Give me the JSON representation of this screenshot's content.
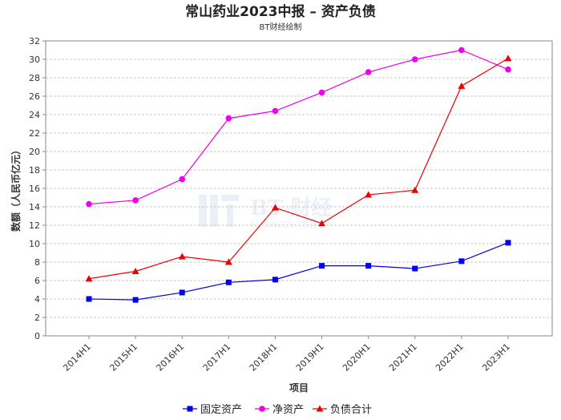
{
  "chart_data": {
    "type": "line",
    "title": "常山药业2023中报 – 资产负债",
    "subtitle": "BT财经绘制",
    "xlabel": "项目",
    "ylabel": "数额（人民币亿元）",
    "ylim": [
      0,
      32
    ],
    "yticks": [
      "0",
      "2",
      "4",
      "6",
      "8",
      "10",
      "12",
      "14",
      "16",
      "18",
      "20",
      "22",
      "24",
      "26",
      "28",
      "30",
      "32"
    ],
    "categories": [
      "2014H1",
      "2015H1",
      "2016H1",
      "2017H1",
      "2018H1",
      "2019H1",
      "2020H1",
      "2021H1",
      "2022H1",
      "2023H1"
    ],
    "grid": true,
    "legend_position": "bottom",
    "series": [
      {
        "name": "固定资产",
        "color": "#0000ee",
        "marker": "square",
        "values": [
          4.0,
          3.9,
          4.7,
          5.8,
          6.1,
          7.6,
          7.6,
          7.3,
          8.1,
          10.1
        ]
      },
      {
        "name": "净资产",
        "color": "#ee00ee",
        "marker": "circle",
        "values": [
          14.3,
          14.7,
          17.0,
          23.6,
          24.4,
          26.4,
          28.6,
          30.0,
          31.0,
          28.9
        ]
      },
      {
        "name": "负债合计",
        "color": "#ee0000",
        "marker": "triangle",
        "values": [
          6.2,
          7.0,
          8.6,
          8.0,
          13.9,
          12.2,
          15.3,
          15.8,
          27.1,
          30.1
        ]
      }
    ]
  }
}
